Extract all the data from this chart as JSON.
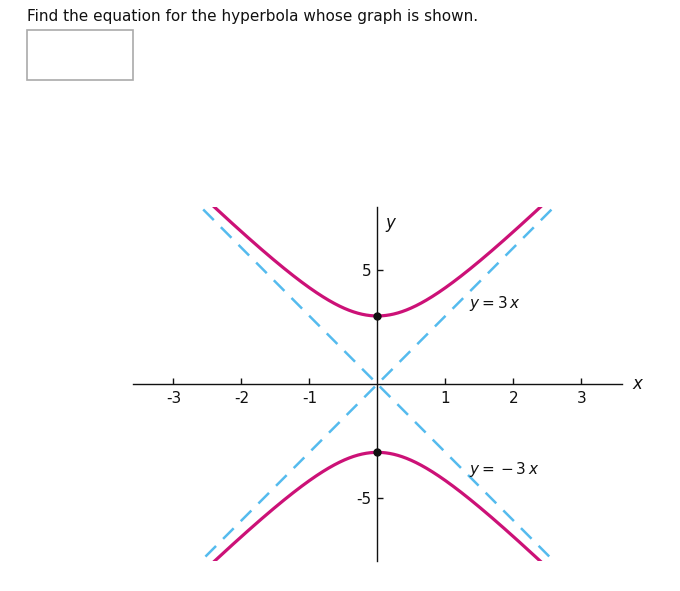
{
  "title": "Find the equation for the hyperbola whose graph is shown.",
  "xlabel": "x",
  "ylabel": "y",
  "xlim": [
    -3.6,
    3.6
  ],
  "ylim": [
    -7.8,
    7.8
  ],
  "xticks": [
    -3,
    -2,
    -1,
    1,
    2,
    3
  ],
  "yticks": [
    5,
    -5
  ],
  "hyperbola_color": "#CC1177",
  "asymptote_color": "#55BBEE",
  "vertex_y": 3.0,
  "a_squared": 9,
  "b_squared": 1,
  "slope": 3,
  "background_color": "#ffffff",
  "axis_color": "#111111",
  "dot_color": "#111111",
  "dot_size": 30,
  "figwidth": 6.8,
  "figheight": 5.91,
  "dpi": 100
}
